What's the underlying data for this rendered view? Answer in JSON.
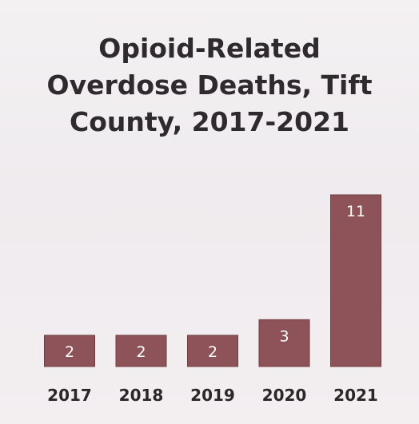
{
  "chart_data": {
    "type": "bar",
    "title": "Opioid-Related Overdose Deaths, Tift County, 2017-2021",
    "title_lines": [
      "Opioid-Related",
      "Overdose Deaths, Tift",
      "County, 2017-2021"
    ],
    "categories": [
      "2017",
      "2018",
      "2019",
      "2020",
      "2021"
    ],
    "values": [
      2,
      2,
      2,
      3,
      11
    ],
    "data_labels": [
      "2",
      "2",
      "2",
      "3",
      "11"
    ],
    "xlabel": "",
    "ylabel": "",
    "ylim": [
      0,
      11
    ],
    "grid": false,
    "legend": "none",
    "bar_color": "#8e5358",
    "label_color": "#ffffff"
  }
}
